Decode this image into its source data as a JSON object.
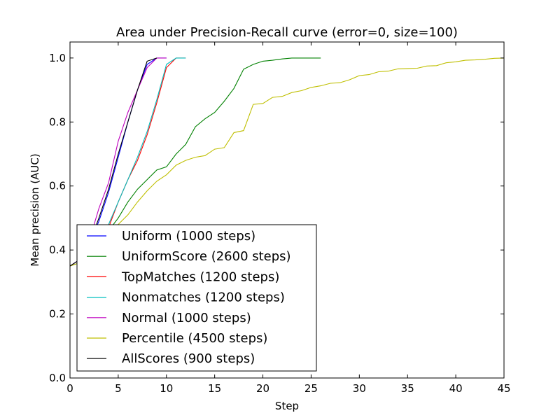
{
  "chart_data": {
    "type": "line",
    "title": "Area under Precision-Recall curve (error=0, size=100)",
    "xlabel": "Step",
    "ylabel": "Mean precision (AUC)",
    "xlim": [
      0,
      45
    ],
    "ylim": [
      0.0,
      1.05
    ],
    "xticks": [
      0,
      5,
      10,
      15,
      20,
      25,
      30,
      35,
      40,
      45
    ],
    "yticks": [
      0.0,
      0.2,
      0.4,
      0.6,
      0.8,
      1.0
    ],
    "xtick_labels": [
      "0",
      "5",
      "10",
      "15",
      "20",
      "25",
      "30",
      "35",
      "40",
      "45"
    ],
    "ytick_labels": [
      "0.0",
      "0.2",
      "0.4",
      "0.6",
      "0.8",
      "1.0"
    ],
    "grid": false,
    "legend_position": "bottom-left",
    "series": [
      {
        "name": "Uniform (1000 steps)",
        "color": "#0000ff",
        "x": [
          0,
          1,
          2,
          3,
          4,
          5,
          6,
          7,
          8,
          9,
          10
        ],
        "y": [
          0.35,
          0.37,
          0.42,
          0.49,
          0.58,
          0.69,
          0.8,
          0.9,
          0.98,
          1.0,
          1.0
        ]
      },
      {
        "name": "UniformScore (2600 steps)",
        "color": "#008000",
        "x": [
          0,
          1,
          2,
          3,
          4,
          5,
          6,
          7,
          8,
          9,
          10,
          11,
          12,
          13,
          14,
          15,
          16,
          17,
          18,
          19,
          20,
          21,
          22,
          23,
          24,
          25,
          26
        ],
        "y": [
          0.35,
          0.37,
          0.4,
          0.42,
          0.46,
          0.5,
          0.55,
          0.59,
          0.62,
          0.65,
          0.66,
          0.7,
          0.73,
          0.785,
          0.81,
          0.83,
          0.865,
          0.905,
          0.965,
          0.98,
          0.99,
          0.993,
          0.997,
          1.0,
          1.0,
          1.0,
          1.0
        ]
      },
      {
        "name": "TopMatches (1200 steps)",
        "color": "#ff0000",
        "x": [
          0,
          1,
          2,
          3,
          4,
          5,
          6,
          7,
          8,
          9,
          10,
          11,
          12
        ],
        "y": [
          0.35,
          0.36,
          0.38,
          0.42,
          0.47,
          0.55,
          0.62,
          0.68,
          0.76,
          0.86,
          0.97,
          1.0,
          1.0
        ]
      },
      {
        "name": "Nonmatches (1200 steps)",
        "color": "#00bfbf",
        "x": [
          0,
          1,
          2,
          3,
          4,
          5,
          6,
          7,
          8,
          9,
          10,
          11,
          12
        ],
        "y": [
          0.35,
          0.36,
          0.38,
          0.42,
          0.48,
          0.55,
          0.62,
          0.69,
          0.77,
          0.87,
          0.98,
          1.0,
          1.0
        ]
      },
      {
        "name": "Normal (1000 steps)",
        "color": "#bf00bf",
        "x": [
          0,
          1,
          2,
          3,
          4,
          5,
          6,
          7,
          8,
          9,
          10
        ],
        "y": [
          0.35,
          0.37,
          0.43,
          0.53,
          0.61,
          0.74,
          0.83,
          0.9,
          0.97,
          1.0,
          1.0
        ]
      },
      {
        "name": "Percentile (4500 steps)",
        "color": "#bfbf00",
        "x": [
          0,
          1,
          2,
          3,
          4,
          5,
          6,
          7,
          8,
          9,
          10,
          11,
          12,
          13,
          14,
          15,
          16,
          17,
          18,
          19,
          20,
          21,
          22,
          23,
          24,
          25,
          26,
          27,
          28,
          29,
          30,
          31,
          32,
          33,
          34,
          35,
          36,
          37,
          38,
          39,
          40,
          41,
          42,
          43,
          44,
          45
        ],
        "y": [
          0.35,
          0.36,
          0.38,
          0.41,
          0.44,
          0.48,
          0.51,
          0.55,
          0.585,
          0.615,
          0.635,
          0.665,
          0.68,
          0.69,
          0.695,
          0.715,
          0.72,
          0.767,
          0.773,
          0.855,
          0.858,
          0.877,
          0.88,
          0.892,
          0.898,
          0.908,
          0.913,
          0.921,
          0.923,
          0.932,
          0.945,
          0.948,
          0.957,
          0.959,
          0.966,
          0.967,
          0.968,
          0.975,
          0.976,
          0.985,
          0.988,
          0.993,
          0.994,
          0.996,
          0.999,
          1.0
        ]
      },
      {
        "name": "AllScores (900 steps)",
        "color": "#000000",
        "x": [
          0,
          1,
          2,
          3,
          4,
          5,
          6,
          7,
          8,
          9
        ],
        "y": [
          0.35,
          0.37,
          0.42,
          0.5,
          0.59,
          0.7,
          0.8,
          0.9,
          0.99,
          1.0
        ]
      }
    ]
  }
}
